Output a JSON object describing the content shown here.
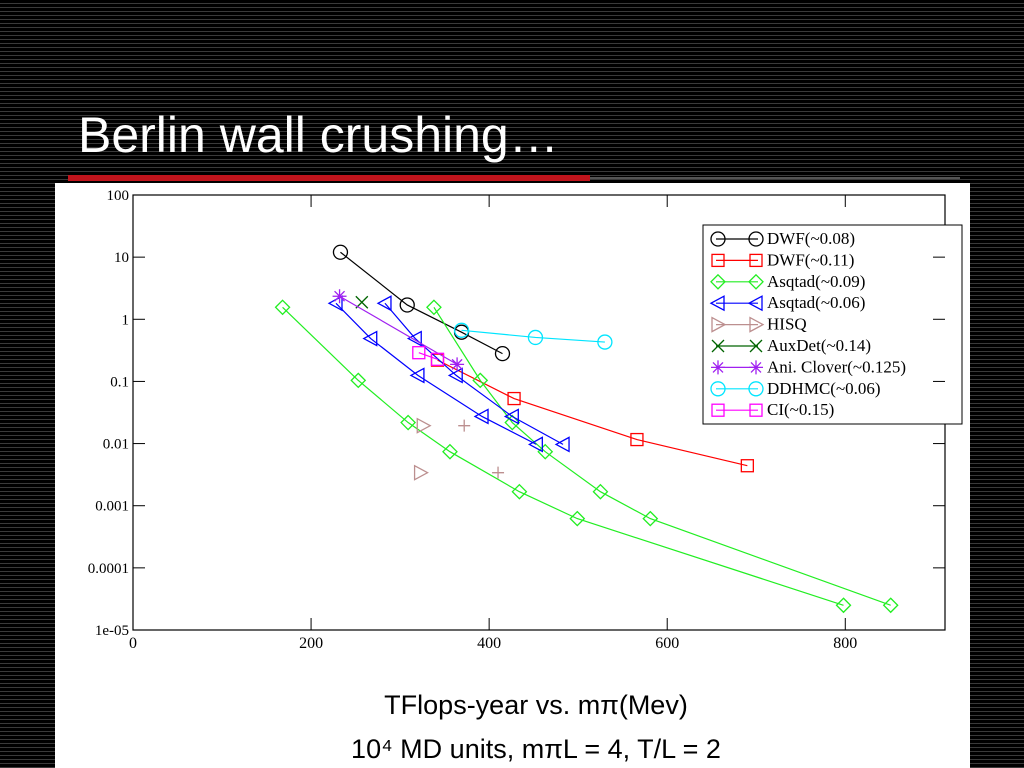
{
  "slide_title": "Berlin wall crushing…",
  "chart_data": {
    "type": "line",
    "xlabel": "TFlops-year vs. mπ(Mev)",
    "subtitle": "10⁴ MD units, mπL = 4, T/L = 2",
    "xlim": [
      0,
      912
    ],
    "xticks": [
      0,
      200,
      400,
      600,
      800
    ],
    "ylim": [
      1e-05,
      100
    ],
    "ylog": true,
    "yticks": [
      100,
      10,
      1,
      0.1,
      0.01,
      0.001,
      0.0001,
      {
        "value": 1e-05,
        "label": "1e-05"
      }
    ],
    "legend": "upper right",
    "series": [
      {
        "name": "DWF(~0.08)",
        "color": "#000000",
        "marker": "circle",
        "x": [
          233,
          308,
          369,
          415
        ],
        "values": [
          12,
          1.7,
          0.62,
          0.28
        ]
      },
      {
        "name": "DWF(~0.11)",
        "color": "#ff0000",
        "marker": "square",
        "x": [
          342,
          428,
          566,
          690
        ],
        "values": [
          0.22,
          0.053,
          0.0116,
          0.0044
        ]
      },
      {
        "name": "Asqtad(~0.09)",
        "color": "#22ee22",
        "marker": "diamond",
        "x": [
          168,
          253,
          309,
          356,
          434,
          499,
          798,
          null,
          338,
          390,
          426,
          463,
          525,
          581,
          851
        ],
        "values": [
          1.56,
          0.104,
          0.0218,
          0.0074,
          0.00168,
          0.00062,
          2.5e-05,
          null,
          1.56,
          0.104,
          0.0218,
          0.0074,
          0.00168,
          0.00062,
          2.5e-05
        ]
      },
      {
        "name": "Asqtad(~0.06)",
        "color": "#0000ff",
        "marker": "triangle-left",
        "x": [
          228,
          267,
          320,
          392,
          453,
          null,
          283,
          317,
          363,
          426,
          483
        ],
        "values": [
          1.81,
          0.49,
          0.125,
          0.0273,
          0.0097,
          null,
          1.81,
          0.49,
          0.125,
          0.0273,
          0.0097
        ]
      },
      {
        "name": "HISQ",
        "color": "#bc8f8f",
        "marker": "triangle-right",
        "line": false,
        "x": [
          326,
          323
        ],
        "values": [
          0.0194,
          0.0034
        ]
      },
      {
        "color": "#bc8f8f",
        "marker": "plus",
        "line": false,
        "x": [
          372,
          410
        ],
        "values": [
          0.0194,
          0.0034
        ]
      },
      {
        "name": "AuxDet(~0.14)",
        "color": "#006400",
        "marker": "cross",
        "x": [
          257
        ],
        "values": [
          1.88
        ]
      },
      {
        "name": "Ani. Clover(~0.125)",
        "color": "#a020f0",
        "marker": "star",
        "x": [
          232,
          364
        ],
        "values": [
          2.35,
          0.188
        ]
      },
      {
        "name": "DDHMC(~0.06)",
        "color": "#00e5ff",
        "marker": "circle",
        "x": [
          369,
          452,
          530
        ],
        "values": [
          0.665,
          0.51,
          0.43
        ]
      },
      {
        "name": "CI(~0.15)",
        "color": "#ff00ff",
        "marker": "square",
        "x": [
          321,
          342
        ],
        "values": [
          0.29,
          0.227
        ]
      }
    ]
  }
}
